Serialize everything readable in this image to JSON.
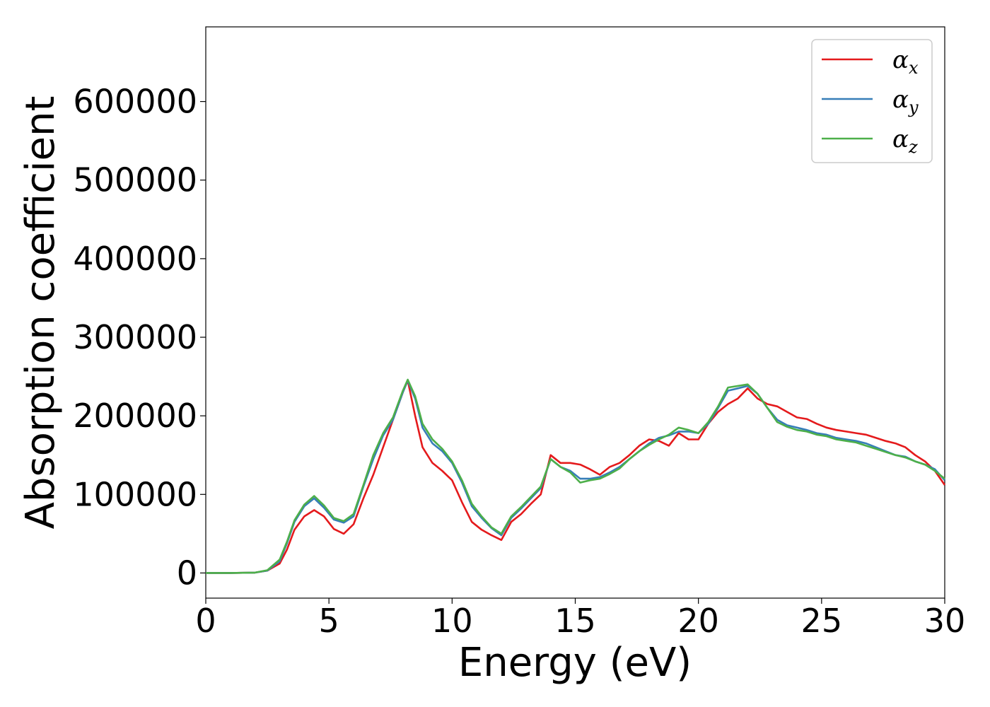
{
  "chart_data": {
    "type": "line",
    "xlabel": "Energy (eV)",
    "ylabel": "Absorption coefficient",
    "xlim": [
      0,
      30
    ],
    "ylim": [
      -32000,
      695000
    ],
    "xticks": [
      "0",
      "5",
      "10",
      "15",
      "20",
      "25",
      "30"
    ],
    "yticks": [
      "0",
      "100000",
      "200000",
      "300000",
      "400000",
      "500000",
      "600000"
    ],
    "grid": false,
    "legend_position": "top-right",
    "series": [
      {
        "name": "α",
        "subscript": "x",
        "color": "#e41a1c",
        "x": [
          0,
          1,
          2,
          2.5,
          3,
          3.3,
          3.6,
          4.0,
          4.4,
          4.8,
          5.2,
          5.6,
          6.0,
          6.4,
          6.8,
          7.2,
          7.6,
          8.0,
          8.2,
          8.5,
          8.8,
          9.2,
          9.6,
          10.0,
          10.4,
          10.8,
          11.2,
          11.6,
          12.0,
          12.4,
          12.8,
          13.2,
          13.6,
          14.0,
          14.4,
          14.8,
          15.2,
          15.6,
          16.0,
          16.4,
          16.8,
          17.2,
          17.6,
          18.0,
          18.4,
          18.8,
          19.2,
          19.6,
          20.0,
          20.4,
          20.8,
          21.2,
          21.6,
          22.0,
          22.4,
          22.8,
          23.2,
          23.6,
          24.0,
          24.4,
          24.8,
          25.2,
          25.6,
          26.0,
          26.4,
          26.8,
          27.2,
          27.6,
          28.0,
          28.4,
          28.8,
          29.2,
          29.6,
          30.0
        ],
        "y": [
          0,
          0,
          500,
          3000,
          12000,
          30000,
          55000,
          72000,
          80000,
          72000,
          56000,
          50000,
          62000,
          95000,
          125000,
          160000,
          195000,
          230000,
          245000,
          200000,
          160000,
          140000,
          130000,
          118000,
          90000,
          65000,
          55000,
          48000,
          42000,
          65000,
          75000,
          88000,
          100000,
          150000,
          140000,
          140000,
          138000,
          132000,
          125000,
          135000,
          140000,
          150000,
          162000,
          170000,
          168000,
          162000,
          178000,
          170000,
          170000,
          190000,
          205000,
          215000,
          222000,
          235000,
          222000,
          215000,
          212000,
          205000,
          198000,
          196000,
          190000,
          185000,
          182000,
          180000,
          178000,
          176000,
          172000,
          168000,
          165000,
          160000,
          150000,
          142000,
          130000,
          112000
        ]
      },
      {
        "name": "α",
        "subscript": "y",
        "color": "#377eb8",
        "x": [
          0,
          1,
          2,
          2.5,
          3,
          3.3,
          3.6,
          4.0,
          4.4,
          4.8,
          5.2,
          5.6,
          6.0,
          6.4,
          6.8,
          7.2,
          7.6,
          8.0,
          8.2,
          8.5,
          8.8,
          9.2,
          9.6,
          10.0,
          10.4,
          10.8,
          11.2,
          11.6,
          12.0,
          12.4,
          12.8,
          13.2,
          13.6,
          14.0,
          14.4,
          14.8,
          15.2,
          15.6,
          16.0,
          16.4,
          16.8,
          17.2,
          17.6,
          18.0,
          18.4,
          18.8,
          19.2,
          19.6,
          20.0,
          20.4,
          20.8,
          21.2,
          21.6,
          22.0,
          22.4,
          22.8,
          23.2,
          23.6,
          24.0,
          24.4,
          24.8,
          25.2,
          25.6,
          26.0,
          26.4,
          26.8,
          27.2,
          27.6,
          28.0,
          28.4,
          28.8,
          29.2,
          29.6,
          30.0
        ],
        "y": [
          0,
          0,
          500,
          3000,
          15000,
          38000,
          65000,
          85000,
          95000,
          83000,
          68000,
          64000,
          72000,
          110000,
          145000,
          175000,
          195000,
          230000,
          245000,
          222000,
          185000,
          165000,
          155000,
          140000,
          115000,
          85000,
          70000,
          57000,
          48000,
          70000,
          82000,
          95000,
          108000,
          145000,
          135000,
          130000,
          120000,
          120000,
          122000,
          128000,
          135000,
          145000,
          155000,
          165000,
          172000,
          175000,
          180000,
          180000,
          178000,
          190000,
          210000,
          232000,
          235000,
          238000,
          228000,
          210000,
          195000,
          188000,
          185000,
          182000,
          178000,
          176000,
          172000,
          170000,
          168000,
          165000,
          160000,
          155000,
          150000,
          148000,
          142000,
          138000,
          132000,
          118000
        ]
      },
      {
        "name": "α",
        "subscript": "z",
        "color": "#4daf4a",
        "x": [
          0,
          1,
          2,
          2.5,
          3,
          3.3,
          3.6,
          4.0,
          4.4,
          4.8,
          5.2,
          5.6,
          6.0,
          6.4,
          6.8,
          7.2,
          7.6,
          8.0,
          8.2,
          8.5,
          8.8,
          9.2,
          9.6,
          10.0,
          10.4,
          10.8,
          11.2,
          11.6,
          12.0,
          12.4,
          12.8,
          13.2,
          13.6,
          14.0,
          14.4,
          14.8,
          15.2,
          15.6,
          16.0,
          16.4,
          16.8,
          17.2,
          17.6,
          18.0,
          18.4,
          18.8,
          19.2,
          19.6,
          20.0,
          20.4,
          20.8,
          21.2,
          21.6,
          22.0,
          22.4,
          22.8,
          23.2,
          23.6,
          24.0,
          24.4,
          24.8,
          25.2,
          25.6,
          26.0,
          26.4,
          26.8,
          27.2,
          27.6,
          28.0,
          28.4,
          28.8,
          29.2,
          29.6,
          30.0
        ],
        "y": [
          0,
          0,
          500,
          3500,
          17000,
          40000,
          67000,
          87000,
          98000,
          86000,
          70000,
          66000,
          75000,
          112000,
          150000,
          178000,
          198000,
          232000,
          246000,
          225000,
          190000,
          170000,
          158000,
          142000,
          118000,
          88000,
          72000,
          58000,
          50000,
          72000,
          84000,
          97000,
          110000,
          145000,
          135000,
          128000,
          115000,
          118000,
          120000,
          126000,
          133000,
          145000,
          155000,
          163000,
          170000,
          176000,
          185000,
          182000,
          178000,
          192000,
          212000,
          236000,
          238000,
          240000,
          228000,
          210000,
          192000,
          186000,
          182000,
          180000,
          176000,
          174000,
          170000,
          168000,
          166000,
          162000,
          158000,
          154000,
          150000,
          147000,
          142000,
          138000,
          130000,
          120000
        ]
      }
    ]
  }
}
